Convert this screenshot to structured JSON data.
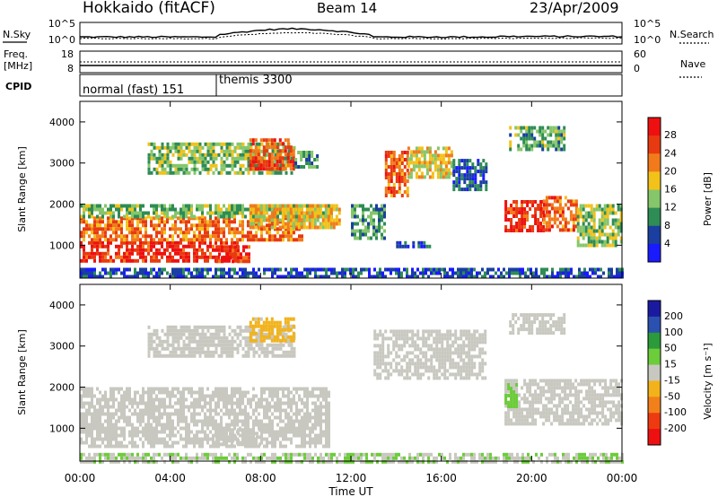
{
  "header": {
    "title": "Hokkaido (fitACF)",
    "beam": "Beam 14",
    "date": "23/Apr/2009"
  },
  "aux_panels": {
    "nsky": {
      "left_label": "N.Sky",
      "left_ticks": [
        "10^5",
        "10^0"
      ],
      "right_ticks": [
        "10^5",
        "10^0"
      ],
      "right_label": "N.Search"
    },
    "freq": {
      "left_label_1": "Freq.",
      "left_label_2": "[MHz]",
      "left_ticks": [
        "18",
        "8"
      ],
      "right_ticks": [
        "60",
        "0"
      ],
      "right_label": "Nave"
    },
    "cpid": {
      "label": "CPID",
      "segments": [
        {
          "label": "normal (fast) 151",
          "start_hour": 0,
          "end_hour": 6.05
        },
        {
          "label": "themis 3300",
          "start_hour": 6.05,
          "end_hour": 24
        }
      ]
    }
  },
  "colors": {
    "power_scale": [
      "#1a1aff",
      "#1a3fa0",
      "#2e8c55",
      "#86c66a",
      "#f2c21a",
      "#f27a1a",
      "#e83a10",
      "#ee1010"
    ],
    "velocity_scale": [
      "#1a1aa0",
      "#2a50b0",
      "#2a9a3a",
      "#6ccc3a",
      "#c8c8c0",
      "#f2b21a",
      "#f2801a",
      "#ee3a10",
      "#ee1010"
    ]
  },
  "chart_data": [
    {
      "type": "heatmap",
      "name": "power",
      "ylabel": "Slant Range [km]",
      "ylim": [
        200,
        4500
      ],
      "yticks": [
        "4000",
        "3000",
        "2000",
        "1000"
      ],
      "xlim": [
        0,
        24
      ],
      "colorbar": {
        "label": "Power [dB]",
        "ticks": [
          "28",
          "24",
          "20",
          "16",
          "12",
          "8",
          "4"
        ],
        "range": [
          0,
          32
        ]
      },
      "regions": [
        {
          "t0": 0.0,
          "t1": 7.0,
          "r0": 600,
          "r1": 1100,
          "value": 28
        },
        {
          "t0": 0.0,
          "t1": 9.8,
          "r0": 1100,
          "r1": 1700,
          "value": 23
        },
        {
          "t0": 0.0,
          "t1": 11.2,
          "r0": 1700,
          "r1": 2000,
          "value": 13
        },
        {
          "t0": 6.0,
          "t1": 7.5,
          "r0": 600,
          "r1": 1000,
          "value": 27
        },
        {
          "t0": 7.5,
          "t1": 11.5,
          "r0": 1400,
          "r1": 2000,
          "value": 19
        },
        {
          "t0": 3.0,
          "t1": 9.5,
          "r0": 2800,
          "r1": 3500,
          "value": 14
        },
        {
          "t0": 7.5,
          "t1": 9.5,
          "r0": 2900,
          "r1": 3600,
          "value": 25
        },
        {
          "t0": 9.5,
          "t1": 10.5,
          "r0": 2900,
          "r1": 3300,
          "value": 11
        },
        {
          "t0": 12.0,
          "t1": 13.5,
          "r0": 1200,
          "r1": 2000,
          "value": 11
        },
        {
          "t0": 13.5,
          "t1": 14.5,
          "r0": 2200,
          "r1": 3300,
          "value": 24
        },
        {
          "t0": 14.5,
          "t1": 16.5,
          "r0": 2700,
          "r1": 3400,
          "value": 17
        },
        {
          "t0": 16.5,
          "t1": 18.0,
          "r0": 2400,
          "r1": 3100,
          "value": 7
        },
        {
          "t0": 14.0,
          "t1": 15.5,
          "r0": 1000,
          "r1": 1100,
          "value": 5
        },
        {
          "t0": 18.8,
          "t1": 20.5,
          "r0": 1400,
          "r1": 2100,
          "value": 28
        },
        {
          "t0": 20.5,
          "t1": 22.0,
          "r0": 1400,
          "r1": 2200,
          "value": 24
        },
        {
          "t0": 22.0,
          "t1": 24.0,
          "r0": 1000,
          "r1": 2000,
          "value": 14
        },
        {
          "t0": 19.0,
          "t1": 21.5,
          "r0": 3300,
          "r1": 3900,
          "value": 12
        },
        {
          "t0": 0.0,
          "t1": 24.0,
          "r0": 200,
          "r1": 450,
          "value": 6
        }
      ]
    },
    {
      "type": "heatmap",
      "name": "velocity",
      "ylabel": "Slant Range [km]",
      "xlabel": "Time UT",
      "ylim": [
        200,
        4500
      ],
      "yticks": [
        "4000",
        "3000",
        "2000",
        "1000"
      ],
      "xlim": [
        0,
        24
      ],
      "xticks": [
        "00:00",
        "04:00",
        "08:00",
        "12:00",
        "16:00",
        "20:00",
        "00:00"
      ],
      "colorbar": {
        "label": "Velocity [m s⁻¹]",
        "ticks": [
          "200",
          "100",
          "50",
          "15",
          "-15",
          "-50",
          "-100",
          "-200"
        ],
        "range": [
          -250,
          250
        ]
      },
      "regions": [
        {
          "t0": 0.0,
          "t1": 11.0,
          "r0": 600,
          "r1": 2000,
          "value": 0
        },
        {
          "t0": 6.0,
          "t1": 8.0,
          "r0": 600,
          "r1": 1000,
          "value": 0
        },
        {
          "t0": 3.0,
          "t1": 9.5,
          "r0": 2800,
          "r1": 3500,
          "value": 0
        },
        {
          "t0": 7.5,
          "t1": 9.5,
          "r0": 3100,
          "r1": 3700,
          "value": -40
        },
        {
          "t0": 13.0,
          "t1": 18.0,
          "r0": 2200,
          "r1": 3400,
          "value": 0
        },
        {
          "t0": 18.8,
          "t1": 24.0,
          "r0": 1100,
          "r1": 2200,
          "value": 0
        },
        {
          "t0": 18.8,
          "t1": 19.3,
          "r0": 1500,
          "r1": 2100,
          "value": 40
        },
        {
          "t0": 19.0,
          "t1": 21.5,
          "r0": 3300,
          "r1": 3800,
          "value": 0
        },
        {
          "t0": 0.0,
          "t1": 24.0,
          "r0": 200,
          "r1": 400,
          "value": 25
        }
      ]
    }
  ]
}
